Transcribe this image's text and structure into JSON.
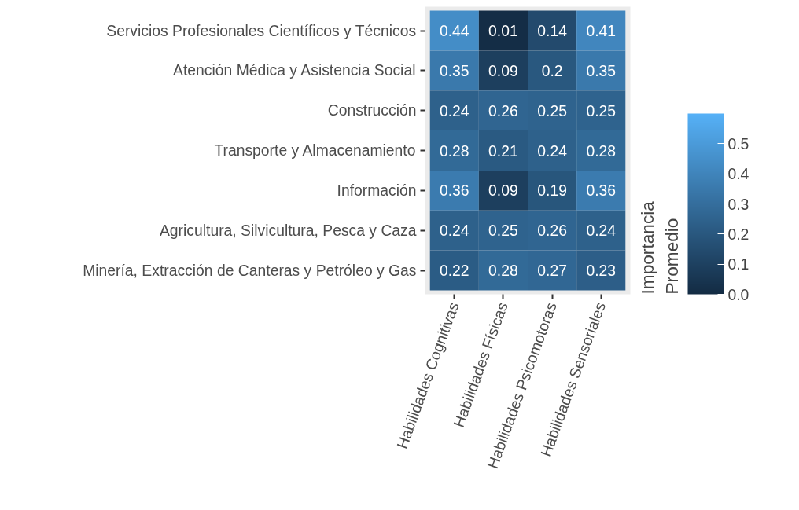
{
  "chart_data": {
    "type": "heatmap",
    "categories": [
      "Habilidades Cognitivas",
      "Habilidades Físicas",
      "Habilidades Psicomotoras",
      "Habilidades Sensoriales"
    ],
    "y_categories": [
      "Servicios Profesionales Científicos y Técnicos",
      "Atención Médica y Asistencia Social",
      "Construcción",
      "Transporte y Almacenamiento",
      "Información",
      "Agricultura, Silvicultura, Pesca y Caza",
      "Minería, Extracción de Canteras y Petróleo y Gas"
    ],
    "cells": [
      [
        0.44,
        0.01,
        0.14,
        0.41
      ],
      [
        0.35,
        0.09,
        0.2,
        0.35
      ],
      [
        0.24,
        0.26,
        0.25,
        0.25
      ],
      [
        0.28,
        0.21,
        0.24,
        0.28
      ],
      [
        0.36,
        0.09,
        0.19,
        0.36
      ],
      [
        0.24,
        0.25,
        0.26,
        0.24
      ],
      [
        0.22,
        0.28,
        0.27,
        0.23
      ]
    ],
    "data_labels": true,
    "clabel": "Importancia Promedio",
    "clim": [
      0,
      0.6
    ],
    "cticks": [
      {
        "value": 0,
        "label": "0.0"
      },
      0.1,
      0.2,
      0.3,
      0.4,
      0.5
    ],
    "grid": false
  }
}
